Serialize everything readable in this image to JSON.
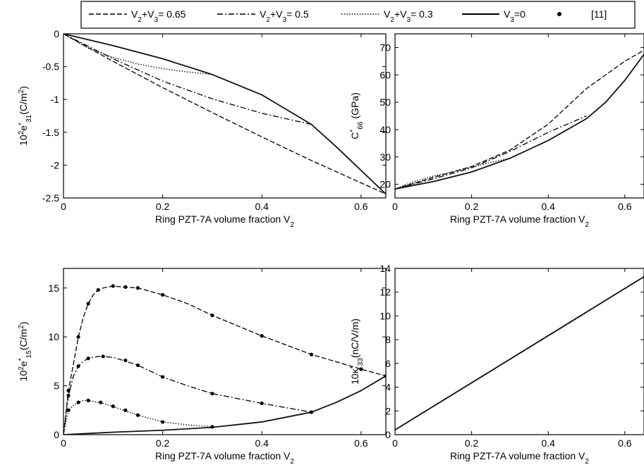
{
  "legend": {
    "items": [
      {
        "style": "dashed",
        "label_parts": [
          [
            "V",
            ""
          ],
          [
            "2",
            "sub"
          ],
          [
            "+V",
            ""
          ],
          [
            "3",
            "sub"
          ],
          [
            "= 0.65",
            ""
          ]
        ]
      },
      {
        "style": "dashdot",
        "label_parts": [
          [
            "V",
            ""
          ],
          [
            "2",
            "sub"
          ],
          [
            "+V",
            ""
          ],
          [
            "3",
            "sub"
          ],
          [
            "= 0.5",
            ""
          ]
        ]
      },
      {
        "style": "dotted",
        "label_parts": [
          [
            "V",
            ""
          ],
          [
            "2",
            "sub"
          ],
          [
            "+V",
            ""
          ],
          [
            "3",
            "sub"
          ],
          [
            "= 0.3",
            ""
          ]
        ]
      },
      {
        "style": "solid",
        "label_parts": [
          [
            "V",
            ""
          ],
          [
            "3",
            "sub"
          ],
          [
            "=0",
            ""
          ]
        ]
      },
      {
        "style": "marker",
        "label_parts": [
          [
            "[11]",
            ""
          ]
        ]
      }
    ]
  },
  "chart_data": [
    {
      "id": "e31",
      "type": "line",
      "xlim": [
        0,
        0.65
      ],
      "ylim": [
        -2.5,
        0
      ],
      "xticks": [
        0,
        0.2,
        0.4,
        0.6
      ],
      "xtick_labels": [
        "0",
        "0.2",
        "0.4",
        "0.6"
      ],
      "yticks": [
        0,
        -0.5,
        -1,
        -1.5,
        -2,
        -2.5
      ],
      "ytick_labels": [
        "0",
        "-0.5",
        "-1",
        "-1.5",
        "-2",
        "-2.5"
      ],
      "xlabel_parts": [
        [
          "Ring PZT-7A volume fraction V",
          ""
        ],
        [
          "2",
          "sub"
        ]
      ],
      "ylabel_parts": [
        [
          "10",
          ""
        ],
        [
          "2",
          "sup"
        ],
        [
          "e",
          ""
        ],
        [
          "*",
          "sup"
        ],
        [
          "31",
          "sub"
        ],
        [
          "(C/m",
          ""
        ],
        [
          "2",
          "sup"
        ],
        [
          ")",
          ""
        ]
      ],
      "series": [
        {
          "style": "dashed",
          "x": [
            0,
            0.1,
            0.2,
            0.3,
            0.4,
            0.5,
            0.6,
            0.65
          ],
          "y": [
            0,
            -0.42,
            -0.82,
            -1.2,
            -1.57,
            -1.93,
            -2.27,
            -2.44
          ]
        },
        {
          "style": "dashdot",
          "x": [
            0,
            0.1,
            0.2,
            0.3,
            0.4,
            0.5
          ],
          "y": [
            0,
            -0.38,
            -0.72,
            -0.99,
            -1.21,
            -1.38
          ]
        },
        {
          "style": "dotted",
          "x": [
            0,
            0.05,
            0.1,
            0.15,
            0.2,
            0.25,
            0.3
          ],
          "y": [
            0,
            -0.22,
            -0.36,
            -0.46,
            -0.53,
            -0.58,
            -0.62
          ]
        },
        {
          "style": "solid",
          "x": [
            0,
            0.1,
            0.2,
            0.3,
            0.4,
            0.5,
            0.55,
            0.6,
            0.65
          ],
          "y": [
            0,
            -0.18,
            -0.38,
            -0.62,
            -0.93,
            -1.38,
            -1.72,
            -2.08,
            -2.44
          ]
        }
      ],
      "markers": []
    },
    {
      "id": "c66",
      "type": "line",
      "xlim": [
        0,
        0.65
      ],
      "ylim": [
        15,
        75
      ],
      "xticks": [
        0,
        0.2,
        0.4,
        0.6
      ],
      "xtick_labels": [
        "0",
        "0.2",
        "0.4",
        "0.6"
      ],
      "yticks": [
        20,
        30,
        40,
        50,
        60,
        70
      ],
      "ytick_labels": [
        "20",
        "30",
        "40",
        "50",
        "60",
        "70"
      ],
      "xlabel_parts": [
        [
          "Ring PZT-7A volume fraction V",
          ""
        ],
        [
          "2",
          "sub"
        ]
      ],
      "ylabel_parts": [
        [
          "C",
          ""
        ],
        [
          "*",
          "sup"
        ],
        [
          "66",
          "sub"
        ],
        [
          " (GPa)",
          ""
        ]
      ],
      "series": [
        {
          "style": "dashed",
          "x": [
            0,
            0.1,
            0.2,
            0.3,
            0.4,
            0.5,
            0.6,
            0.65
          ],
          "y": [
            18.3,
            22.5,
            26.5,
            32.5,
            42,
            55,
            65,
            69
          ]
        },
        {
          "style": "dashdot",
          "x": [
            0,
            0.1,
            0.2,
            0.3,
            0.4,
            0.5
          ],
          "y": [
            18.3,
            22,
            26,
            32,
            39,
            45
          ]
        },
        {
          "style": "dotted",
          "x": [
            0,
            0.05,
            0.1,
            0.15,
            0.2,
            0.25,
            0.3
          ],
          "y": [
            18.3,
            21,
            23,
            24.5,
            26.3,
            28,
            29.5
          ]
        },
        {
          "style": "solid",
          "x": [
            0,
            0.1,
            0.2,
            0.3,
            0.4,
            0.5,
            0.55,
            0.6,
            0.65
          ],
          "y": [
            18.3,
            21,
            24.5,
            29.5,
            36,
            44,
            50,
            58,
            67.5
          ]
        }
      ],
      "markers": []
    },
    {
      "id": "e15",
      "type": "line",
      "xlim": [
        0,
        0.65
      ],
      "ylim": [
        0,
        17
      ],
      "xticks": [
        0,
        0.2,
        0.4,
        0.6
      ],
      "xtick_labels": [
        "0",
        "0.2",
        "0.4",
        "0.6"
      ],
      "yticks": [
        0,
        5,
        10,
        15
      ],
      "ytick_labels": [
        "0",
        "5",
        "10",
        "15"
      ],
      "xlabel_parts": [
        [
          "Ring PZT-7A volume fraction V",
          ""
        ],
        [
          "2",
          "sub"
        ]
      ],
      "ylabel_parts": [
        [
          "10",
          ""
        ],
        [
          "2",
          "sup"
        ],
        [
          "e",
          ""
        ],
        [
          "*",
          "sup"
        ],
        [
          "15",
          "sub"
        ],
        [
          "(C/m",
          ""
        ],
        [
          "2",
          "sup"
        ],
        [
          ")",
          ""
        ]
      ],
      "series": [
        {
          "style": "dashed",
          "x": [
            0,
            0.01,
            0.02,
            0.03,
            0.04,
            0.05,
            0.06,
            0.07,
            0.08,
            0.1,
            0.12,
            0.15,
            0.2,
            0.25,
            0.3,
            0.4,
            0.5,
            0.6,
            0.65
          ],
          "y": [
            0,
            4.5,
            7.2,
            10,
            12,
            13.4,
            14.3,
            14.8,
            15,
            15.2,
            15.1,
            15,
            14.3,
            13.4,
            12.2,
            10.1,
            8.2,
            6.7,
            6
          ]
        },
        {
          "style": "dashdot",
          "x": [
            0,
            0.01,
            0.02,
            0.03,
            0.04,
            0.05,
            0.06,
            0.07,
            0.08,
            0.1,
            0.12,
            0.15,
            0.2,
            0.25,
            0.3,
            0.4,
            0.5
          ],
          "y": [
            0,
            4,
            6,
            7,
            7.5,
            7.8,
            7.9,
            8,
            8,
            7.9,
            7.6,
            7.1,
            5.9,
            5,
            4.2,
            3.2,
            2.3
          ]
        },
        {
          "style": "dotted",
          "x": [
            0,
            0.01,
            0.02,
            0.03,
            0.04,
            0.05,
            0.06,
            0.08,
            0.1,
            0.12,
            0.15,
            0.2,
            0.25,
            0.3
          ],
          "y": [
            0,
            2.5,
            3,
            3.3,
            3.5,
            3.5,
            3.4,
            3.2,
            2.9,
            2.5,
            2,
            1.3,
            1,
            0.8
          ]
        },
        {
          "style": "solid",
          "x": [
            0,
            0.1,
            0.2,
            0.3,
            0.4,
            0.5,
            0.55,
            0.6,
            0.65
          ],
          "y": [
            0,
            0.25,
            0.45,
            0.75,
            1.3,
            2.3,
            3.3,
            4.5,
            6
          ]
        }
      ],
      "markers": [
        {
          "x": [
            0.01,
            0.03,
            0.05,
            0.07,
            0.1,
            0.125,
            0.15,
            0.2,
            0.3,
            0.4,
            0.5,
            0.6,
            0.65
          ],
          "y": [
            4.5,
            10,
            13.4,
            14.8,
            15.2,
            15.1,
            15,
            14.3,
            12.2,
            10.1,
            8.2,
            6.7,
            6
          ]
        },
        {
          "x": [
            0.01,
            0.03,
            0.05,
            0.08,
            0.125,
            0.15,
            0.2,
            0.3,
            0.4,
            0.5
          ],
          "y": [
            4,
            7,
            7.8,
            8,
            7.6,
            7.1,
            5.9,
            4.2,
            3.2,
            2.3
          ]
        },
        {
          "x": [
            0.01,
            0.03,
            0.05,
            0.075,
            0.1,
            0.125,
            0.15,
            0.2,
            0.3
          ],
          "y": [
            2.5,
            3.3,
            3.5,
            3.3,
            2.9,
            2.5,
            2,
            1.3,
            0.8
          ]
        }
      ]
    },
    {
      "id": "k33",
      "type": "line",
      "xlim": [
        0,
        0.65
      ],
      "ylim": [
        0,
        14
      ],
      "xticks": [
        0,
        0.2,
        0.4,
        0.6
      ],
      "xtick_labels": [
        "0",
        "0.2",
        "0.4",
        "0.6"
      ],
      "yticks": [
        0,
        2,
        4,
        6,
        8,
        10,
        12,
        14
      ],
      "ytick_labels": [
        "0",
        "2",
        "4",
        "6",
        "8",
        "10",
        "12",
        "14"
      ],
      "xlabel_parts": [
        [
          "Ring PZT-7A volume fraction V",
          ""
        ],
        [
          "2",
          "sub"
        ]
      ],
      "ylabel_parts": [
        [
          "10",
          ""
        ],
        [
          "κ",
          ""
        ],
        [
          "*",
          "sup"
        ],
        [
          "33",
          "sub"
        ],
        [
          "(nC/V/m)",
          ""
        ]
      ],
      "series": [
        {
          "style": "dashed",
          "x": [
            0,
            0.65
          ],
          "y": [
            0.4,
            13.3
          ]
        },
        {
          "style": "dashdot",
          "x": [
            0,
            0.5
          ],
          "y": [
            0.4,
            10.3
          ]
        },
        {
          "style": "dotted",
          "x": [
            0,
            0.3
          ],
          "y": [
            0.4,
            6.35
          ]
        },
        {
          "style": "solid",
          "x": [
            0,
            0.65
          ],
          "y": [
            0.4,
            13.3
          ]
        }
      ],
      "markers": []
    }
  ]
}
